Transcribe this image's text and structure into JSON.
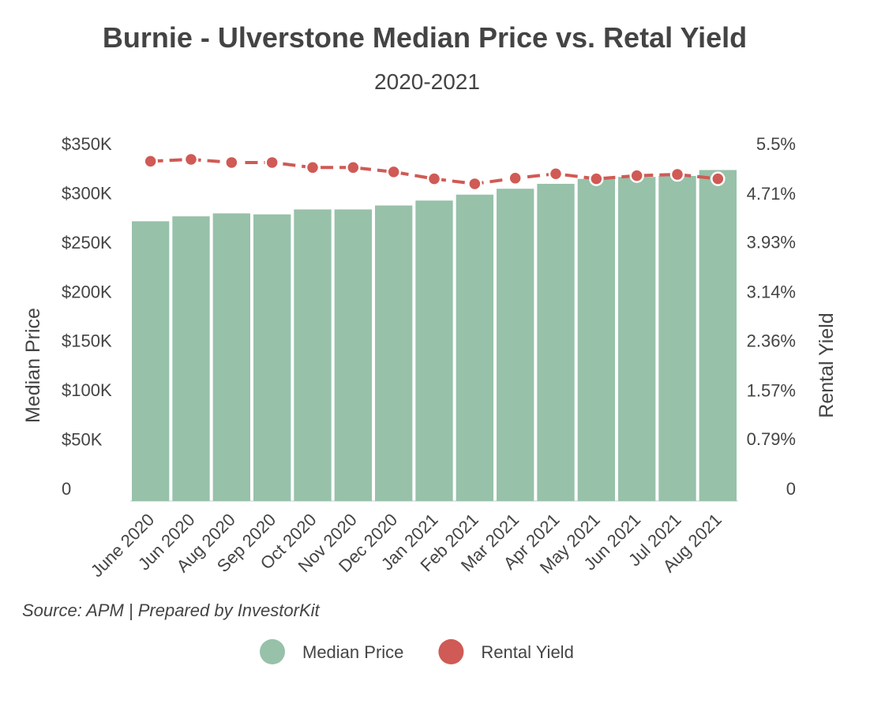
{
  "chart_data": {
    "type": "bar",
    "title": "Burnie - Ulverstone Median Price vs. Retal Yield",
    "subtitle": "2020-2021",
    "y_label": "Median Price",
    "y2_label": "Rental Yield",
    "source": "Source: APM | Prepared by InvestorKit",
    "categories": [
      "June 2020",
      "Jun 2020",
      "Aug 2020",
      "Sep 2020",
      "Oct 2020",
      "Nov 2020",
      "Dec 2020",
      "Jan 2021",
      "Feb 2021",
      "Mar 2021",
      "Apr 2021",
      "May 2021",
      "Jun 2021",
      "Jul 2021",
      "Aug 2021"
    ],
    "series": [
      {
        "name": "Median Price",
        "color": "#97c1a9",
        "values": [
          284000,
          289000,
          292000,
          291000,
          296000,
          296000,
          300000,
          305000,
          311000,
          317000,
          322000,
          327000,
          329000,
          330000,
          336000
        ]
      },
      {
        "name": "Rental Yield",
        "color": "#d05a55",
        "axis": "y2",
        "type": "line",
        "values": [
          5.42,
          5.45,
          5.4,
          5.4,
          5.32,
          5.32,
          5.25,
          5.14,
          5.06,
          5.15,
          5.22,
          5.14,
          5.19,
          5.21,
          5.14
        ]
      }
    ],
    "ylim": [
      0,
      350000
    ],
    "yticks": [
      0,
      {
        "value": 50000,
        "label": "$50K"
      },
      {
        "value": 100000,
        "label": "$100K"
      },
      {
        "value": 150000,
        "label": "$150K"
      },
      {
        "value": 200000,
        "label": "$200K"
      },
      {
        "value": 250000,
        "label": "$250K"
      },
      {
        "value": 300000,
        "label": "$300K"
      },
      {
        "value": 350000,
        "label": "$350K"
      }
    ],
    "y2lim": [
      0,
      5.5
    ],
    "y2ticks": [
      0,
      {
        "value": 0.79,
        "label": "0.79%"
      },
      {
        "value": 1.57,
        "label": "1.57%"
      },
      {
        "value": 2.36,
        "label": "2.36%"
      },
      {
        "value": 3.14,
        "label": "3.14%"
      },
      {
        "value": 3.93,
        "label": "3.93%"
      },
      {
        "value": 4.71,
        "label": "4.71%"
      },
      {
        "value": 5.5,
        "label": "5.5%"
      }
    ],
    "legend": "bottom"
  }
}
